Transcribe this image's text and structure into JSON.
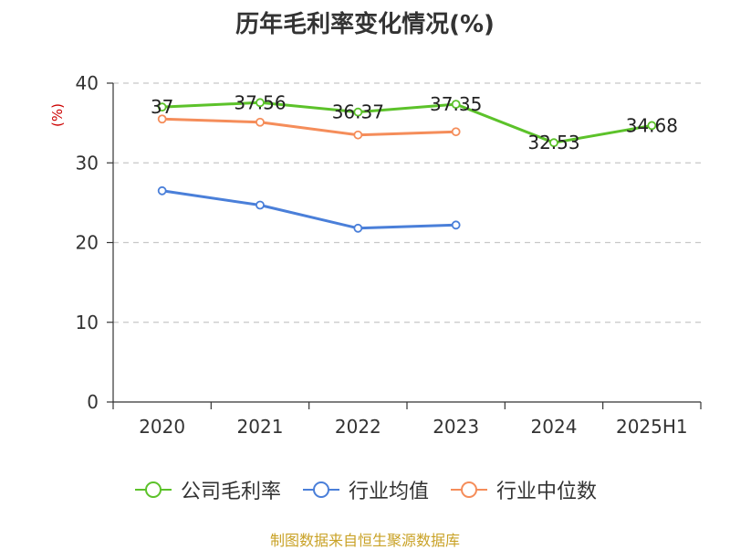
{
  "chart_data": {
    "type": "line",
    "title": "历年毛利率变化情况(%)",
    "ylabel": "(%)",
    "xlabel": "",
    "categories": [
      "2020",
      "2021",
      "2022",
      "2023",
      "2024",
      "2025H1"
    ],
    "ylim": [
      0,
      40
    ],
    "yticks": [
      0,
      10,
      20,
      30,
      40
    ],
    "grid": true,
    "legend_position": "bottom",
    "series": [
      {
        "name": "公司毛利率",
        "color": "#5cc22a",
        "values": [
          37,
          37.56,
          36.37,
          37.35,
          32.53,
          34.68
        ],
        "labels": [
          "37",
          "37.56",
          "36.37",
          "37.35",
          "32.53",
          "34.68"
        ]
      },
      {
        "name": "行业均值",
        "color": "#4a7fd9",
        "values": [
          26.5,
          24.7,
          21.8,
          22.2,
          null,
          null
        ]
      },
      {
        "name": "行业中位数",
        "color": "#f58d5a",
        "values": [
          35.5,
          35.1,
          33.5,
          33.9,
          null,
          null
        ]
      }
    ]
  },
  "source_note": "制图数据来自恒生聚源数据库"
}
